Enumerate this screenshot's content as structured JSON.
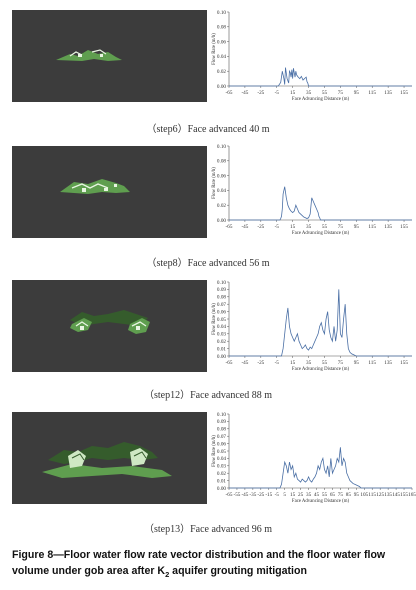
{
  "panels": [
    {
      "id": "step6",
      "caption": "（step6）Face advanced 40 m",
      "chart": {
        "type": "line",
        "ylabel": "Flow Rate (m/h)",
        "xlabel": "Face Advancing Distance (m)",
        "yticks": [
          "0.00",
          "0.02",
          "0.04",
          "0.06",
          "0.08",
          "0.10"
        ],
        "xticks": [
          "-65",
          "-45",
          "-25",
          "-5",
          "15",
          "35",
          "55",
          "75",
          "95",
          "115",
          "135",
          "155"
        ],
        "ylim": [
          0,
          0.1
        ],
        "xlim": [
          -65,
          165
        ],
        "x": [
          -65,
          -5,
          -3,
          0,
          2,
          4,
          5,
          6,
          8,
          10,
          11,
          12,
          13,
          14,
          15,
          16,
          17,
          18,
          19,
          20,
          22,
          24,
          26,
          28,
          30,
          32,
          33,
          34,
          35,
          165
        ],
        "y": [
          0,
          0,
          0,
          0.005,
          0.02,
          0.01,
          0.002,
          0.025,
          0.01,
          0.004,
          0.02,
          0.018,
          0.012,
          0.022,
          0.01,
          0.024,
          0.018,
          0.012,
          0.02,
          0.015,
          0.012,
          0.01,
          0.013,
          0.008,
          0.01,
          0.012,
          0.006,
          0.004,
          0,
          0
        ]
      }
    },
    {
      "id": "step8",
      "caption": "（step8）Face advanced 56 m",
      "chart": {
        "type": "line",
        "ylabel": "Flow Rate (m/h)",
        "xlabel": "Face Advancing Distance (m)",
        "yticks": [
          "0.00",
          "0.02",
          "0.04",
          "0.06",
          "0.08",
          "0.10"
        ],
        "xticks": [
          "-65",
          "-45",
          "-25",
          "-5",
          "15",
          "35",
          "55",
          "75",
          "95",
          "115",
          "135",
          "155"
        ],
        "ylim": [
          0,
          0.1
        ],
        "xlim": [
          -65,
          165
        ],
        "x": [
          -65,
          -3,
          -1,
          0,
          1,
          2,
          3,
          5,
          7,
          9,
          11,
          13,
          15,
          17,
          19,
          21,
          23,
          25,
          27,
          29,
          31,
          33,
          35,
          37,
          39,
          41,
          43,
          45,
          47,
          48,
          49,
          50,
          165
        ],
        "y": [
          0,
          0,
          0,
          0.002,
          0.005,
          0.015,
          0.035,
          0.045,
          0.03,
          0.02,
          0.015,
          0.012,
          0.01,
          0.012,
          0.02,
          0.015,
          0.01,
          0.008,
          0.006,
          0.004,
          0.003,
          0.002,
          0.003,
          0.008,
          0.03,
          0.025,
          0.02,
          0.015,
          0.01,
          0.005,
          0.003,
          0,
          0
        ]
      }
    },
    {
      "id": "step12",
      "caption": "（step12）Face advanced 88 m",
      "chart": {
        "type": "line",
        "ylabel": "Flow Rate (m/h)",
        "xlabel": "Face Advancing Distance (m)",
        "yticks": [
          "0.00",
          "0.01",
          "0.02",
          "0.03",
          "0.04",
          "0.05",
          "0.06",
          "0.07",
          "0.08",
          "0.09",
          "0.10"
        ],
        "xticks": [
          "-65",
          "-45",
          "-25",
          "-5",
          "15",
          "35",
          "55",
          "75",
          "95",
          "115",
          "135",
          "155"
        ],
        "ylim": [
          0,
          0.1
        ],
        "xlim": [
          -65,
          165
        ],
        "x": [
          -65,
          1,
          3,
          5,
          7,
          9,
          11,
          13,
          15,
          17,
          19,
          21,
          23,
          25,
          27,
          29,
          31,
          33,
          35,
          37,
          39,
          41,
          43,
          45,
          47,
          49,
          51,
          53,
          55,
          57,
          59,
          61,
          63,
          65,
          67,
          69,
          71,
          73,
          75,
          77,
          79,
          81,
          83,
          85,
          87,
          89,
          91,
          93,
          95,
          165
        ],
        "y": [
          0,
          0,
          0.01,
          0.03,
          0.05,
          0.065,
          0.04,
          0.03,
          0.025,
          0.02,
          0.025,
          0.03,
          0.02,
          0.015,
          0.01,
          0.012,
          0.015,
          0.01,
          0.008,
          0.012,
          0.01,
          0.015,
          0.02,
          0.025,
          0.03,
          0.04,
          0.045,
          0.035,
          0.03,
          0.05,
          0.06,
          0.035,
          0.025,
          0.02,
          0.04,
          0.02,
          0.035,
          0.09,
          0.03,
          0.025,
          0.05,
          0.07,
          0.03,
          0.01,
          0.005,
          0.003,
          0.002,
          0.001,
          0,
          0
        ]
      }
    },
    {
      "id": "step13",
      "caption": "（step13）Face advanced 96 m",
      "chart": {
        "type": "line",
        "ylabel": "Flow Rate (m/h)",
        "xlabel": "Face Advancing Distance (m)",
        "yticks": [
          "0.00",
          "0.01",
          "0.02",
          "0.03",
          "0.04",
          "0.05",
          "0.06",
          "0.07",
          "0.08",
          "0.09",
          "0.10"
        ],
        "xticks": [
          "-65",
          "-55",
          "-45",
          "-35",
          "-25",
          "-15",
          "-5",
          "5",
          "15",
          "25",
          "35",
          "45",
          "55",
          "65",
          "75",
          "85",
          "95",
          "105",
          "115",
          "125",
          "135",
          "145",
          "155",
          "165"
        ],
        "ylim": [
          0,
          0.1
        ],
        "xlim": [
          -65,
          165
        ],
        "x": [
          -65,
          -1,
          1,
          3,
          5,
          7,
          9,
          11,
          13,
          15,
          17,
          19,
          21,
          23,
          25,
          27,
          29,
          31,
          33,
          35,
          37,
          39,
          41,
          43,
          45,
          47,
          49,
          51,
          53,
          55,
          57,
          59,
          61,
          63,
          65,
          67,
          69,
          71,
          73,
          75,
          77,
          79,
          81,
          83,
          85,
          87,
          89,
          91,
          93,
          95,
          97,
          99,
          101,
          165
        ],
        "y": [
          0,
          0,
          0.005,
          0.02,
          0.035,
          0.03,
          0.02,
          0.035,
          0.025,
          0.03,
          0.015,
          0.02,
          0.012,
          0.01,
          0.008,
          0.012,
          0.01,
          0.008,
          0.01,
          0.015,
          0.01,
          0.008,
          0.012,
          0.015,
          0.02,
          0.03,
          0.025,
          0.035,
          0.04,
          0.025,
          0.02,
          0.03,
          0.015,
          0.04,
          0.02,
          0.025,
          0.03,
          0.04,
          0.035,
          0.055,
          0.03,
          0.04,
          0.035,
          0.02,
          0.015,
          0.01,
          0.008,
          0.006,
          0.005,
          0.004,
          0.003,
          0.002,
          0,
          0
        ]
      }
    }
  ],
  "figure_caption": {
    "main": "Figure 8—Floor water flow rate vector distribution and the floor water flow volume under gob area after K",
    "subscript": "2",
    "tail": " aquifer grouting mitigation"
  },
  "colors": {
    "line": "#4a6fa5",
    "sim_bg": "#3c3c3c",
    "vector_green": "#5f9e4f",
    "vector_light": "#cfe8c4"
  }
}
